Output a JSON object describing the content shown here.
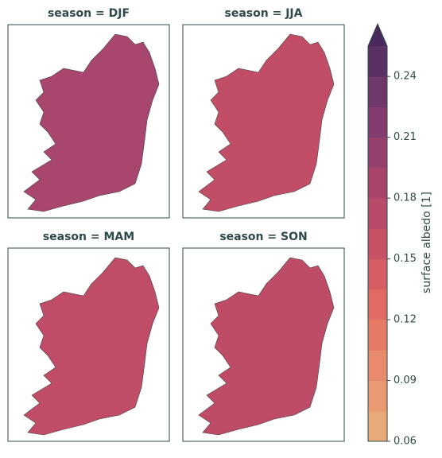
{
  "chart_data": {
    "type": "facet-map",
    "panels": [
      {
        "title": "season = DJF",
        "color": "#a94670"
      },
      {
        "title": "season = JJA",
        "color": "#c24d66"
      },
      {
        "title": "season = MAM",
        "color": "#c04c67"
      },
      {
        "title": "season = SON",
        "color": "#bf4c67"
      }
    ],
    "colorbar": {
      "label": "surface albedo [1]",
      "clim": [
        0.06,
        0.255
      ],
      "extend": "max",
      "ticks": [
        0.06,
        0.09,
        0.12,
        0.15,
        0.18,
        0.21,
        0.24
      ],
      "colors": [
        "#e8a97b",
        "#e99a72",
        "#e88b6c",
        "#e57b66",
        "#df6b63",
        "#d55d63",
        "#c85265",
        "#b94a69",
        "#a8436c",
        "#96406e",
        "#833c6d",
        "#6f376a",
        "#5b3065"
      ],
      "extend_color": "#4a2a5c"
    }
  }
}
